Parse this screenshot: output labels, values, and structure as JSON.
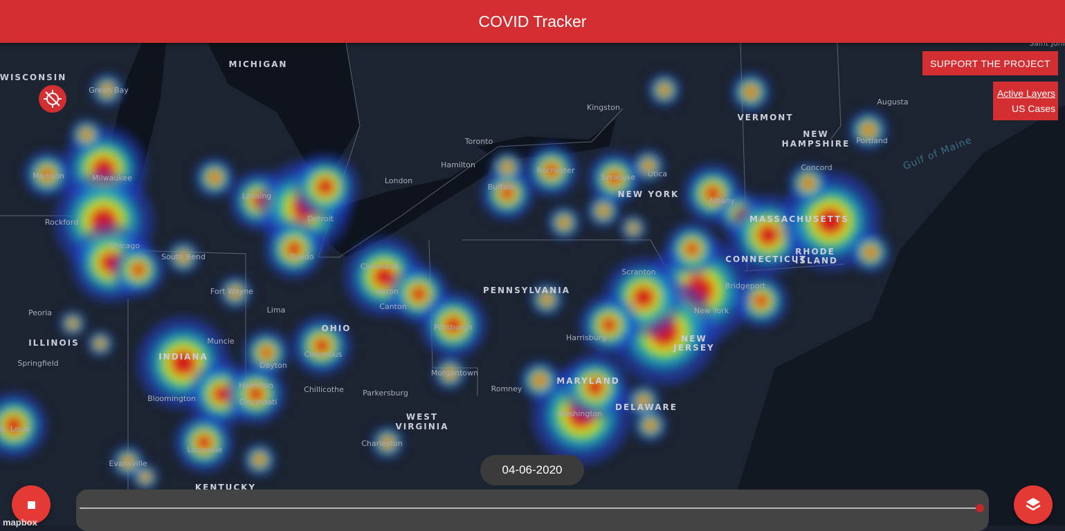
{
  "header": {
    "title": "COVID Tracker"
  },
  "support_button": "SUPPORT THE PROJECT",
  "layers_panel": {
    "title": "Active Layers",
    "items": [
      "US Cases"
    ]
  },
  "date": "04-06-2020",
  "attribution": "mapbox",
  "map_labels": [
    "WISCONSIN",
    "MICHIGAN",
    "Green Bay",
    "Madison",
    "Milwaukee",
    "Rockford",
    "Chicago",
    "South Bend",
    "Fort Wayne",
    "Lima",
    "Peoria",
    "ILLINOIS",
    "Springfield",
    "INDIANA",
    "Muncie",
    "Dayton",
    "Hamilton",
    "Cincinnati",
    "Bloomington",
    "Louisville",
    "Evansville",
    "KENTUCKY",
    "St. Louis",
    "Lansing",
    "Detroit",
    "Toledo",
    "Cleveland",
    "Akron",
    "Canton",
    "OHIO",
    "Columbus",
    "Chillicothe",
    "Parkersburg",
    "WEST",
    "VIRGINIA",
    "Charleston",
    "Pittsburgh",
    "Morgantown",
    "Romney",
    "PENNSYLVANIA",
    "Harrisburg",
    "Scranton",
    "MARYLAND",
    "Washington",
    "DELAWARE",
    "NEW",
    "JERSEY",
    "New York",
    "Bridgeport",
    "CONNECTICUT",
    "RHODE",
    "ISLAND",
    "MASSACHUSETTS",
    "Albany",
    "NEW YORK",
    "Syracuse",
    "Utica",
    "Rochester",
    "Buffalo",
    "Toronto",
    "Hamilton",
    "London",
    "Kingston",
    "VERMONT",
    "NEW",
    "HAMPSHIRE",
    "Concord",
    "Portland",
    "Augusta",
    "Gulf of Maine",
    "Saint John"
  ]
}
